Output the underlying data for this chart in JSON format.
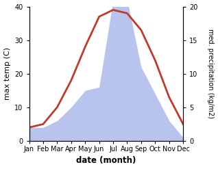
{
  "months": [
    "Jan",
    "Feb",
    "Mar",
    "Apr",
    "May",
    "Jun",
    "Jul",
    "Aug",
    "Sep",
    "Oct",
    "Nov",
    "Dec"
  ],
  "temp": [
    4,
    5,
    10,
    18,
    28,
    37,
    39,
    38,
    33,
    24,
    13,
    5
  ],
  "precip": [
    2,
    2,
    3,
    5,
    7.5,
    8,
    21,
    21,
    11,
    7,
    3,
    0.5
  ],
  "temp_color": "#c0392b",
  "precip_color_fill": "#b8c4ee",
  "xlabel": "date (month)",
  "ylabel_left": "max temp (C)",
  "ylabel_right": "med. precipitation (kg/m2)",
  "ylim_left": [
    0,
    40
  ],
  "ylim_right": [
    0,
    20
  ],
  "yticks_left": [
    0,
    10,
    20,
    30,
    40
  ],
  "yticks_right": [
    0,
    5,
    10,
    15,
    20
  ],
  "bg_color": "#ffffff",
  "temp_linewidth": 2.0,
  "scale_factor": 2.0
}
